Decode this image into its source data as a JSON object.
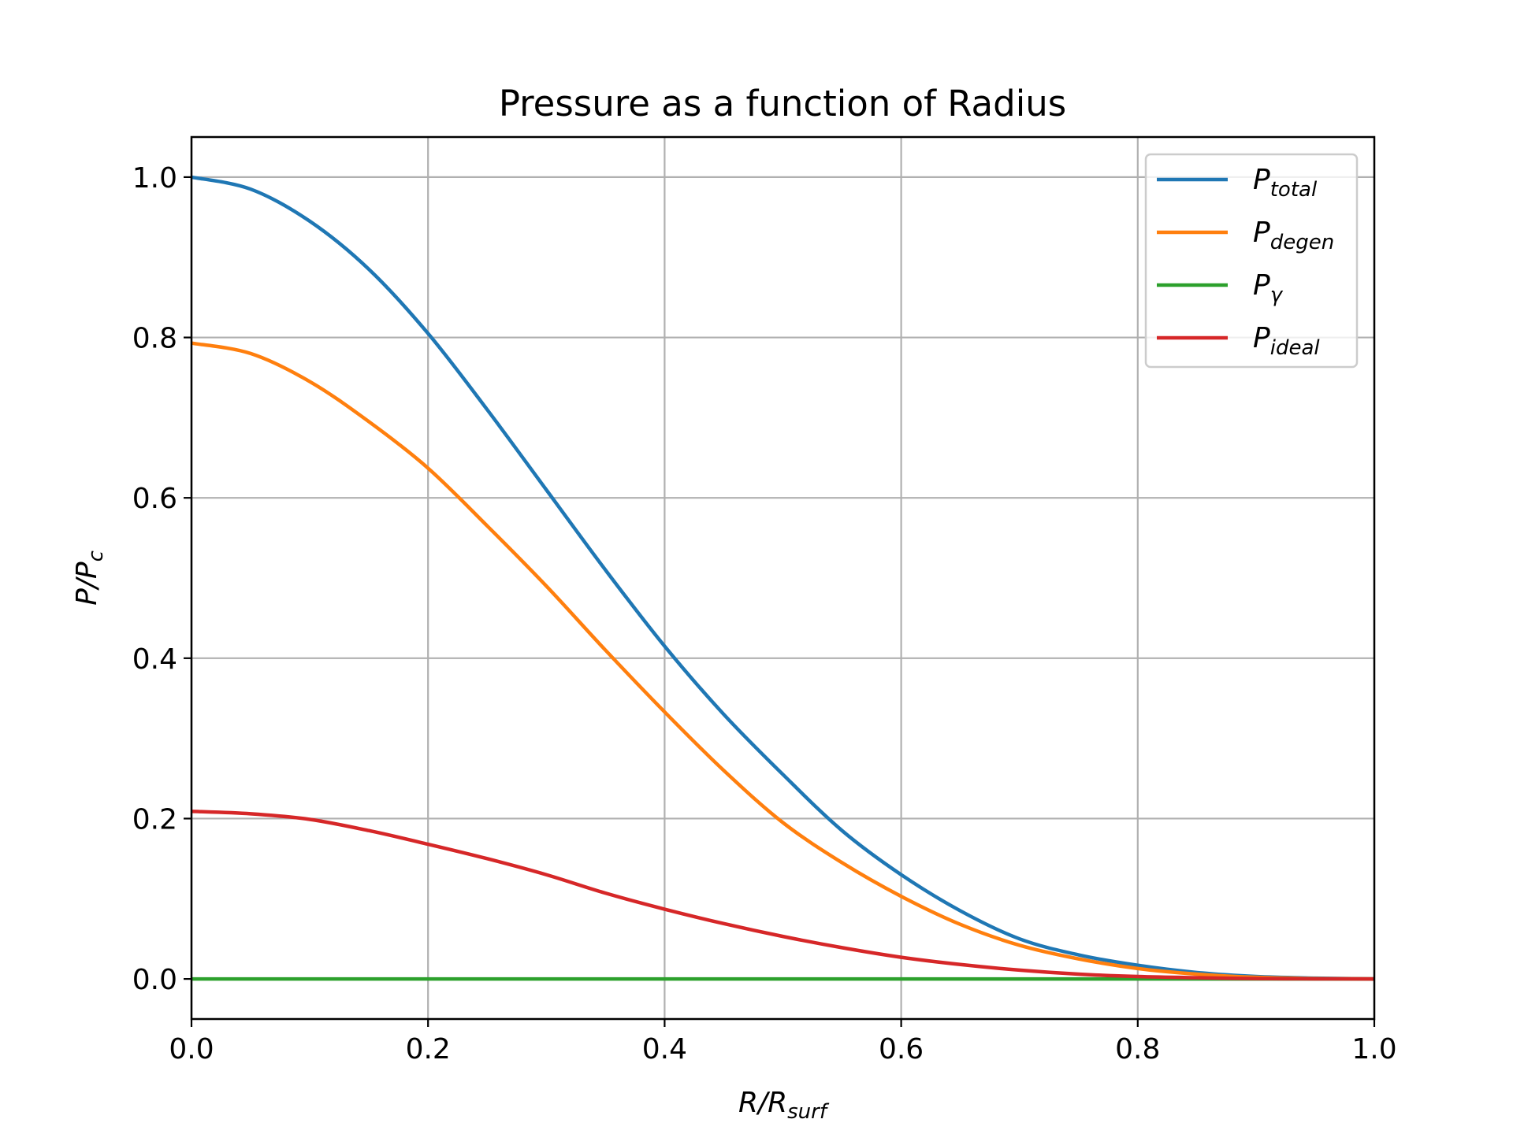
{
  "chart_data": {
    "type": "line",
    "title": "Pressure as a function of Radius",
    "xlabel": {
      "main": "R/R",
      "sub": "surf"
    },
    "ylabel": {
      "main": "P/P",
      "sub": "c"
    },
    "xlim": [
      0.0,
      1.0
    ],
    "ylim": [
      -0.05,
      1.05
    ],
    "xticks": [
      0.0,
      0.2,
      0.4,
      0.6,
      0.8,
      1.0
    ],
    "xtick_labels": [
      "0.0",
      "0.2",
      "0.4",
      "0.6",
      "0.8",
      "1.0"
    ],
    "yticks": [
      0.0,
      0.2,
      0.4,
      0.6,
      0.8,
      1.0
    ],
    "ytick_labels": [
      "0.0",
      "0.2",
      "0.4",
      "0.6",
      "0.8",
      "1.0"
    ],
    "grid": true,
    "legend_position": "top-right",
    "x": [
      0.0,
      0.05,
      0.1,
      0.15,
      0.2,
      0.25,
      0.3,
      0.35,
      0.4,
      0.45,
      0.5,
      0.55,
      0.6,
      0.65,
      0.7,
      0.75,
      0.8,
      0.85,
      0.9,
      0.95,
      1.0
    ],
    "series": [
      {
        "name": "P",
        "sub": "total",
        "color": "#1f77b4",
        "values": [
          1.0,
          0.985,
          0.945,
          0.885,
          0.805,
          0.71,
          0.61,
          0.51,
          0.415,
          0.33,
          0.255,
          0.185,
          0.13,
          0.085,
          0.05,
          0.03,
          0.017,
          0.008,
          0.003,
          0.001,
          0.0
        ]
      },
      {
        "name": "P",
        "sub": "degen",
        "color": "#ff7f0e",
        "values": [
          0.793,
          0.78,
          0.745,
          0.695,
          0.637,
          0.565,
          0.49,
          0.41,
          0.333,
          0.26,
          0.195,
          0.145,
          0.103,
          0.068,
          0.042,
          0.025,
          0.013,
          0.006,
          0.002,
          0.0005,
          0.0
        ]
      },
      {
        "name": "P",
        "sub": "γ",
        "color": "#2ca02c",
        "values": [
          0.0,
          0.0,
          0.0,
          0.0,
          0.0,
          0.0,
          0.0,
          0.0,
          0.0,
          0.0,
          0.0,
          0.0,
          0.0,
          0.0,
          0.0,
          0.0,
          0.0,
          0.0,
          0.0,
          0.0,
          0.0
        ]
      },
      {
        "name": "P",
        "sub": "ideal",
        "color": "#d62728",
        "values": [
          0.209,
          0.206,
          0.199,
          0.185,
          0.168,
          0.15,
          0.13,
          0.107,
          0.087,
          0.069,
          0.053,
          0.039,
          0.027,
          0.018,
          0.011,
          0.006,
          0.003,
          0.0015,
          0.0005,
          0.0001,
          0.0
        ]
      }
    ]
  }
}
